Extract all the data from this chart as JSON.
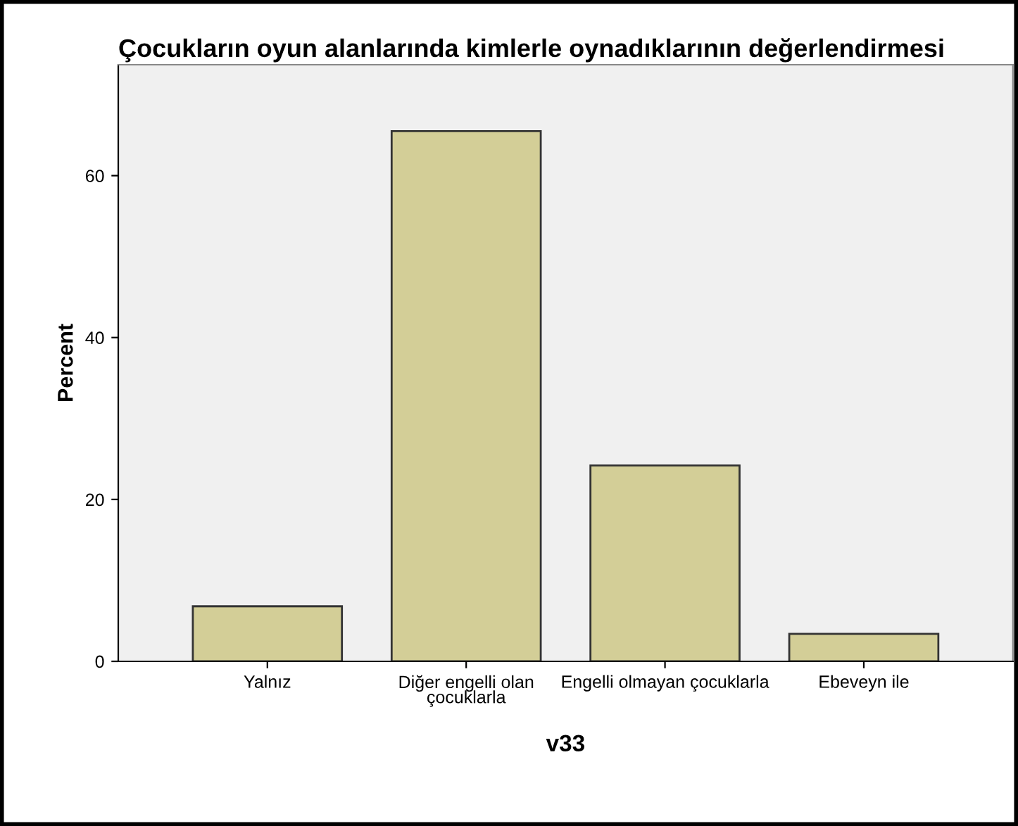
{
  "chart_data": {
    "type": "bar",
    "title": "Çocukların oyun alanlarında kimlerle oynadıklarının değerlendirmesi",
    "xlabel": "v33",
    "ylabel": "Percent",
    "categories": [
      "Yalnız",
      "Diğer engelli olan\nçocuklarla",
      "Engelli olmayan çocuklarla",
      "Ebeveyn ile"
    ],
    "values": [
      6.8,
      65.5,
      24.2,
      3.4
    ],
    "color": "#d3ce97",
    "ylim": [
      0,
      73.7
    ],
    "yticks": [
      0,
      20,
      40,
      60
    ],
    "grid": false,
    "legend": false
  }
}
